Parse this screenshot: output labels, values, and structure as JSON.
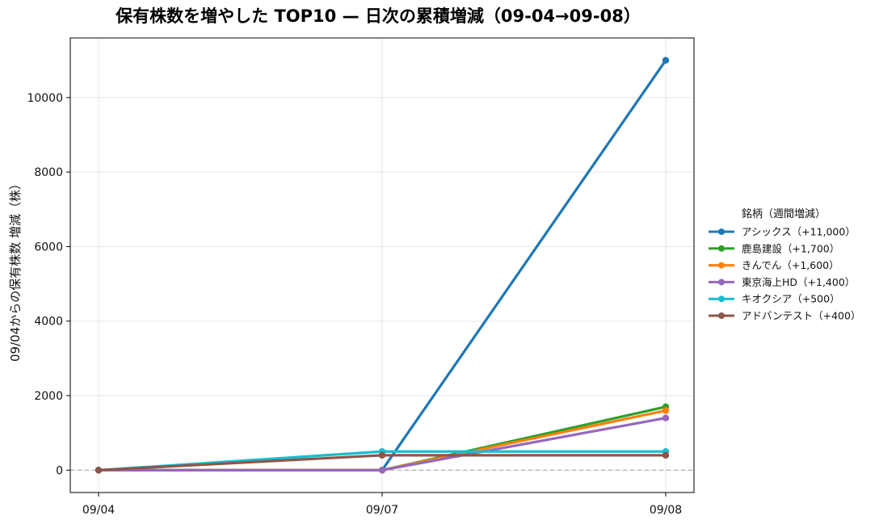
{
  "chart_data": {
    "type": "line",
    "title": "保有株数を増やした TOP10 — 日次の累積増減（09-04→09-08）",
    "xlabel": "",
    "ylabel": "09/04からの保有株数 増減（株）",
    "categories": [
      "09/04",
      "09/07",
      "09/08"
    ],
    "ylim": [
      -600,
      11600
    ],
    "yticks": [
      0,
      2000,
      4000,
      6000,
      8000,
      10000
    ],
    "grid": true,
    "zero_line": true,
    "legend": {
      "title": "銘柄（週間増減）",
      "placement": "right"
    },
    "series": [
      {
        "name": "アシックス（+11,000）",
        "values": [
          0,
          0,
          11000
        ],
        "color": "#1f77b4"
      },
      {
        "name": "鹿島建設（+1,700）",
        "values": [
          0,
          0,
          1700
        ],
        "color": "#2ca02c"
      },
      {
        "name": "きんでん（+1,600）",
        "values": [
          0,
          0,
          1600
        ],
        "color": "#ff7f0e"
      },
      {
        "name": "東京海上HD（+1,400）",
        "values": [
          0,
          0,
          1400
        ],
        "color": "#9467bd"
      },
      {
        "name": "キオクシア（+500）",
        "values": [
          0,
          500,
          500
        ],
        "color": "#17becf"
      },
      {
        "name": "アドバンテスト（+400）",
        "values": [
          0,
          400,
          400
        ],
        "color": "#8c564b"
      }
    ]
  }
}
